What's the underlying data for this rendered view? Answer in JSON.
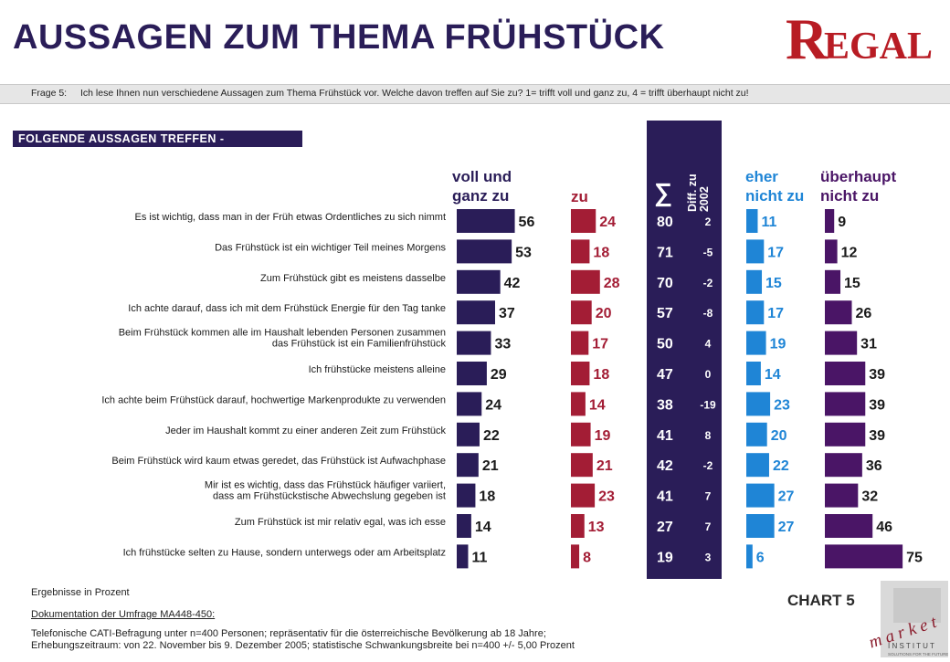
{
  "title": "AUSSAGEN ZUM THEMA FRÜHSTÜCK",
  "logo_text": "REGAL",
  "question": {
    "label": "Frage 5:",
    "text": "Ich lese Ihnen nun verschiedene Aussagen zum Thema Frühstück vor. Welche davon treffen auf Sie zu? 1= trifft voll und ganz zu, 4 = trifft überhaupt nicht zu!"
  },
  "header_box": "FOLGENDE AUSSAGEN TREFFEN -",
  "columns": {
    "voll": "voll und ganz zu",
    "zu": "zu",
    "sigma": "∑",
    "diff": "Diff. zu 2002",
    "eher": "eher nicht zu",
    "ueberhaupt": "überhaupt nicht zu"
  },
  "colors": {
    "voll": "#2a1d58",
    "zu": "#a31d35",
    "sigma_bg": "#2a1d58",
    "eher": "#1f85d6",
    "ueberhaupt": "#4a1566"
  },
  "chart_data": {
    "type": "bar",
    "categories": [
      "Es ist wichtig, dass man in der Früh etwas Ordentliches zu sich nimmt",
      "Das Frühstück ist ein wichtiger Teil meines Morgens",
      "Zum Frühstück gibt es meistens dasselbe",
      "Ich achte darauf, dass ich mit dem Frühstück Energie für den Tag tanke",
      "Beim Frühstück kommen alle im Haushalt lebenden Personen zusammen das Frühstück ist ein Familienfrühstück",
      "Ich frühstücke meistens alleine",
      "Ich achte beim Frühstück darauf, hochwertige Markenprodukte zu verwenden",
      "Jeder im Haushalt kommt zu einer anderen Zeit zum Frühstück",
      "Beim Frühstück wird kaum etwas geredet, das Frühstück ist Aufwachphase",
      "Mir ist es wichtig, dass das Frühstück häufiger variiert, dass am Frühstückstische Abwechslung gegeben ist",
      "Zum Frühstück ist mir relativ egal, was ich esse",
      "Ich frühstücke selten zu Hause, sondern unterwegs oder am Arbeitsplatz"
    ],
    "label_lines": [
      [
        "Es ist wichtig, dass man in der Früh etwas Ordentliches zu sich nimmt"
      ],
      [
        "Das Frühstück ist ein wichtiger Teil meines Morgens"
      ],
      [
        "Zum Frühstück gibt es meistens  dasselbe"
      ],
      [
        "Ich achte darauf, dass ich mit dem Frühstück Energie für den Tag tanke"
      ],
      [
        "Beim Frühstück kommen alle im Haushalt lebenden Personen zusammen",
        "das Frühstück ist ein Familienfrühstück"
      ],
      [
        "Ich frühstücke meistens alleine"
      ],
      [
        "Ich achte beim Frühstück darauf, hochwertige Markenprodukte  zu verwenden"
      ],
      [
        "Jeder im Haushalt kommt zu einer anderen Zeit zum Frühstück"
      ],
      [
        "Beim Frühstück wird kaum etwas geredet, das Frühstück ist Aufwachphase"
      ],
      [
        "Mir ist es wichtig, dass das Frühstück häufiger variiert,",
        "dass am Frühstückstische Abwechslung gegeben ist"
      ],
      [
        "Zum Frühstück ist mir relativ egal, was ich esse"
      ],
      [
        "Ich frühstücke selten zu Hause, sondern unterwegs oder am Arbeitsplatz"
      ]
    ],
    "series": [
      {
        "name": "voll und ganz zu",
        "values": [
          56,
          53,
          42,
          37,
          33,
          29,
          24,
          22,
          21,
          18,
          14,
          11
        ]
      },
      {
        "name": "zu",
        "values": [
          24,
          18,
          28,
          20,
          17,
          18,
          14,
          19,
          21,
          23,
          13,
          8
        ]
      },
      {
        "name": "eher nicht zu",
        "values": [
          11,
          17,
          15,
          17,
          19,
          14,
          23,
          20,
          22,
          27,
          27,
          6
        ]
      },
      {
        "name": "überhaupt nicht zu",
        "values": [
          9,
          12,
          15,
          26,
          31,
          39,
          39,
          39,
          36,
          32,
          46,
          75
        ]
      }
    ],
    "sum": [
      80,
      71,
      70,
      57,
      50,
      47,
      38,
      41,
      42,
      41,
      27,
      19
    ],
    "diff_2002": [
      "2",
      "-5",
      "-2",
      "-8",
      "4",
      "0",
      "-19",
      "8",
      "-2",
      "7",
      "7",
      "3"
    ],
    "unit": "Prozent"
  },
  "footer": {
    "results_note": "Ergebnisse in Prozent",
    "doc_title": "Dokumentation  der Umfrage  MA448-450:",
    "line1": "Telefonische  CATI-Befragung  unter  n=400 Personen;  repräsentativ  für die österreichische  Bevölkerung  ab 18 Jahre;",
    "line2": "Erhebungszeitraum:  von  22. November  bis 9. Dezember  2005;  statistische  Schwankungsbreite  bei n=400  +/- 5,00 Prozent",
    "chart_label": "CHART  5",
    "market_logo": "m a r k e t",
    "institut": "I N S T I T U T",
    "tagline": "SOLUTIONS FOR THE FUTURE"
  }
}
